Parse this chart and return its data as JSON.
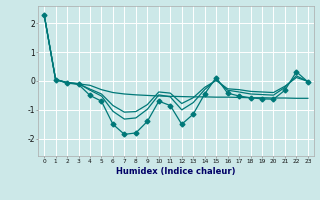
{
  "xlabel": "Humidex (Indice chaleur)",
  "ylabel": "",
  "background_color": "#cce8e8",
  "grid_color": "#ffffff",
  "line_color": "#007878",
  "xlim": [
    -0.5,
    23.5
  ],
  "ylim": [
    -2.6,
    2.6
  ],
  "x": [
    0,
    1,
    2,
    3,
    4,
    5,
    6,
    7,
    8,
    9,
    10,
    11,
    12,
    13,
    14,
    15,
    16,
    17,
    18,
    19,
    20,
    21,
    22,
    23
  ],
  "line1": [
    2.3,
    0.05,
    -0.05,
    -0.1,
    -0.15,
    -0.3,
    -0.4,
    -0.45,
    -0.48,
    -0.5,
    -0.52,
    -0.53,
    -0.54,
    -0.55,
    -0.55,
    -0.56,
    -0.56,
    -0.57,
    -0.58,
    -0.58,
    -0.59,
    -0.59,
    -0.6,
    -0.6
  ],
  "line2": [
    2.3,
    0.05,
    -0.07,
    -0.12,
    -0.5,
    -0.7,
    -1.5,
    -1.85,
    -1.8,
    -1.4,
    -0.7,
    -0.85,
    -1.5,
    -1.15,
    -0.45,
    0.12,
    -0.42,
    -0.52,
    -0.58,
    -0.62,
    -0.63,
    -0.32,
    0.32,
    -0.03
  ],
  "line3": [
    2.3,
    0.05,
    -0.06,
    -0.09,
    -0.32,
    -0.52,
    -1.05,
    -1.32,
    -1.28,
    -0.98,
    -0.48,
    -0.55,
    -1.0,
    -0.75,
    -0.3,
    0.05,
    -0.32,
    -0.38,
    -0.45,
    -0.47,
    -0.49,
    -0.22,
    0.18,
    -0.02
  ],
  "line4": [
    2.3,
    0.05,
    -0.06,
    -0.1,
    -0.28,
    -0.45,
    -0.85,
    -1.08,
    -1.06,
    -0.82,
    -0.38,
    -0.42,
    -0.78,
    -0.58,
    -0.22,
    0.02,
    -0.27,
    -0.3,
    -0.36,
    -0.38,
    -0.4,
    -0.18,
    0.12,
    -0.01
  ],
  "marker": "D",
  "marker_size": 2.5,
  "line_width": 0.9
}
